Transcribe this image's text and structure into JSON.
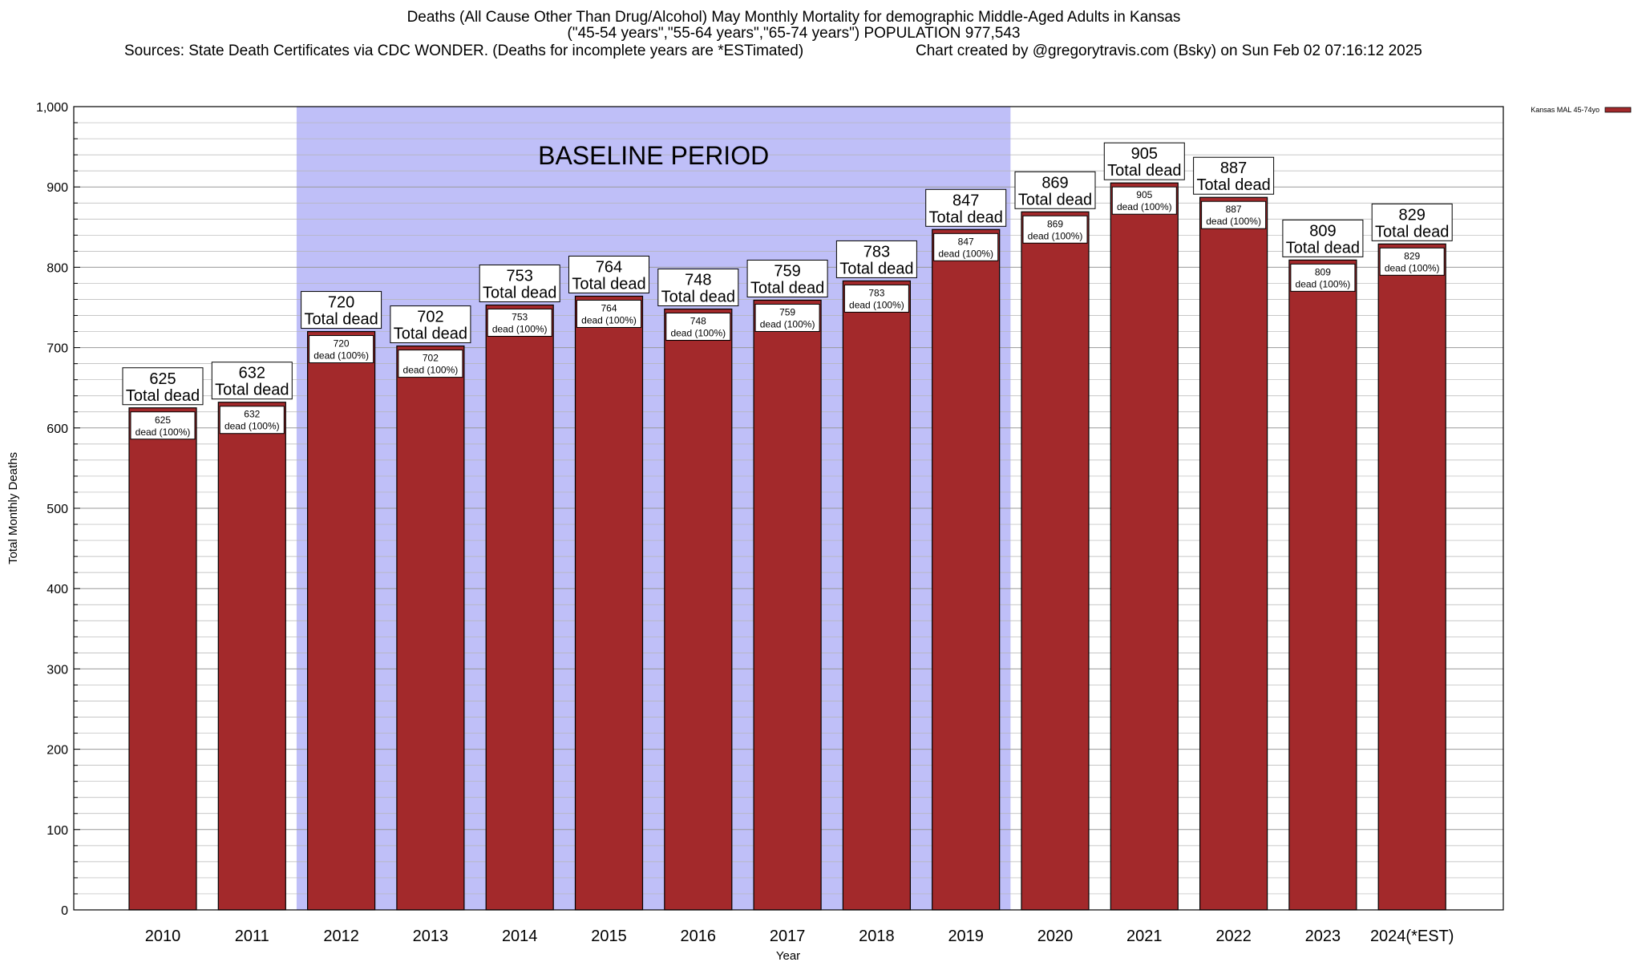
{
  "header": {
    "title_line1": "Deaths (All Cause Other Than Drug/Alcohol) May Monthly Mortality for demographic Middle-Aged Adults in Kansas",
    "title_line2": "(\"45-54 years\",\"55-64 years\",\"65-74 years\") POPULATION 977,543",
    "sources": "Sources: State Death Certificates via CDC WONDER. (Deaths for incomplete years are *ESTimated)",
    "credit": "Chart created by @gregorytravis.com (Bsky) on Sun Feb 02 07:16:12 2025"
  },
  "chart_data": {
    "type": "bar",
    "xlabel": "Year",
    "ylabel": "Total Monthly Deaths",
    "ylim": [
      0,
      1000
    ],
    "yticks": [
      0,
      100,
      200,
      300,
      400,
      500,
      600,
      700,
      800,
      900,
      1000
    ],
    "ytick_labels": [
      "0",
      "100",
      "200",
      "300",
      "400",
      "500",
      "600",
      "700",
      "800",
      "900",
      "1,000"
    ],
    "categories": [
      "2010",
      "2011",
      "2012",
      "2013",
      "2014",
      "2015",
      "2016",
      "2017",
      "2018",
      "2019",
      "2020",
      "2021",
      "2022",
      "2023",
      "2024(*EST)"
    ],
    "series": [
      {
        "name": "Kansas MAL 45-74yo",
        "values": [
          625,
          632,
          720,
          702,
          753,
          764,
          748,
          759,
          783,
          847,
          869,
          905,
          887,
          809,
          829
        ]
      }
    ],
    "bar_color": "#a3292b",
    "top_label_suffix": "Total dead",
    "inner_label_suffix": "dead (100%)",
    "baseline_period": {
      "label": "BASELINE PERIOD",
      "from": "2012",
      "to": "2019",
      "color": "#bfbff8"
    },
    "grid": true,
    "legend_position": "top-right"
  }
}
